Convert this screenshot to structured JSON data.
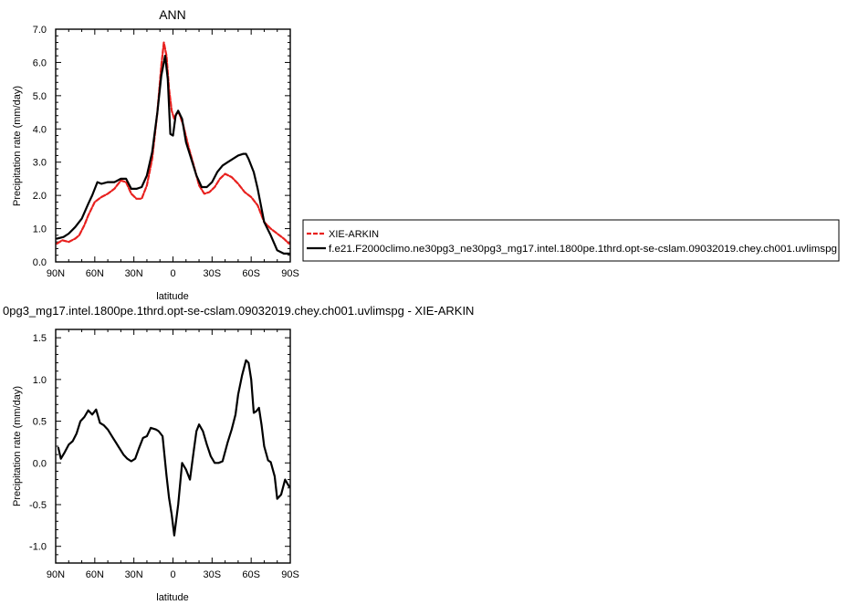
{
  "chart_data": [
    {
      "type": "line",
      "title": "ANN",
      "xlabel": "latitude",
      "ylabel": "Precipitation rate (mm/day)",
      "xlim": [
        -90,
        90
      ],
      "ylim": [
        0,
        7
      ],
      "x_reversed": true,
      "xticks": [
        -90,
        -60,
        -30,
        0,
        30,
        60,
        90
      ],
      "xtick_labels": [
        "90N",
        "60N",
        "30N",
        "0",
        "30S",
        "60S",
        "90S"
      ],
      "yticks": [
        0,
        1,
        2,
        3,
        4,
        5,
        6,
        7
      ],
      "ytick_labels": [
        "0.0",
        "1.0",
        "2.0",
        "3.0",
        "4.0",
        "5.0",
        "6.0",
        "7.0"
      ],
      "legend": "right",
      "series": [
        {
          "name": "XIE-ARKIN",
          "color": "#e8201e",
          "dash": "dashed",
          "x": [
            -89,
            -85,
            -80,
            -75,
            -72,
            -68,
            -65,
            -60,
            -55,
            -50,
            -45,
            -40,
            -36,
            -32,
            -28,
            -24,
            -20,
            -16,
            -12,
            -9,
            -7,
            -5,
            -3,
            -1,
            1,
            3,
            5,
            8,
            12,
            16,
            20,
            24,
            28,
            32,
            36,
            40,
            45,
            50,
            55,
            60,
            65,
            70,
            75,
            80,
            85,
            89
          ],
          "y": [
            0.55,
            0.65,
            0.6,
            0.7,
            0.8,
            1.1,
            1.4,
            1.8,
            1.95,
            2.05,
            2.2,
            2.45,
            2.4,
            2.05,
            1.9,
            1.9,
            2.3,
            3.1,
            4.5,
            5.9,
            6.6,
            6.2,
            5.2,
            4.55,
            4.3,
            4.5,
            4.45,
            4.1,
            3.45,
            2.9,
            2.3,
            2.05,
            2.1,
            2.25,
            2.5,
            2.65,
            2.55,
            2.35,
            2.1,
            1.95,
            1.7,
            1.2,
            1.0,
            0.85,
            0.7,
            0.55
          ]
        },
        {
          "name": "f.e21.F2000climo.ne30pg3_ne30pg3_mg17.intel.1800pe.1thrd.opt-se-cslam.09032019.chey.ch001.uvlimspg",
          "color": "#000000",
          "dash": "solid",
          "x": [
            -89,
            -84,
            -80,
            -75,
            -70,
            -65,
            -62,
            -58,
            -55,
            -50,
            -45,
            -40,
            -36,
            -32,
            -28,
            -24,
            -20,
            -16,
            -12,
            -9,
            -6,
            -4,
            -2,
            0,
            2,
            4,
            7,
            10,
            14,
            18,
            22,
            26,
            30,
            34,
            38,
            42,
            46,
            50,
            54,
            56,
            58,
            62,
            65,
            70,
            75,
            80,
            85,
            89
          ],
          "y": [
            0.7,
            0.75,
            0.85,
            1.05,
            1.3,
            1.75,
            2.0,
            2.4,
            2.35,
            2.4,
            2.4,
            2.5,
            2.5,
            2.2,
            2.2,
            2.25,
            2.6,
            3.3,
            4.5,
            5.6,
            6.2,
            5.5,
            3.85,
            3.8,
            4.4,
            4.55,
            4.3,
            3.6,
            3.1,
            2.6,
            2.25,
            2.25,
            2.4,
            2.7,
            2.9,
            3.0,
            3.1,
            3.2,
            3.25,
            3.25,
            3.1,
            2.7,
            2.2,
            1.2,
            0.8,
            0.35,
            0.25,
            0.25
          ]
        }
      ]
    },
    {
      "type": "line",
      "title": "0pg3_mg17.intel.1800pe.1thrd.opt-se-cslam.09032019.chey.ch001.uvlimspg - XIE-ARKIN",
      "xlabel": "latitude",
      "ylabel": "Precipitation rate (mm/day)",
      "xlim": [
        -90,
        90
      ],
      "ylim": [
        -1.2,
        1.6
      ],
      "x_reversed": true,
      "xticks": [
        -90,
        -60,
        -30,
        0,
        30,
        60,
        90
      ],
      "xtick_labels": [
        "90N",
        "60N",
        "30N",
        "0",
        "30S",
        "60S",
        "90S"
      ],
      "yticks": [
        -1.0,
        -0.5,
        0.0,
        0.5,
        1.0,
        1.5
      ],
      "ytick_labels": [
        "-1.0",
        "-0.5",
        "0.0",
        "0.5",
        "1.0",
        "1.5"
      ],
      "series": [
        {
          "color": "#000000",
          "dash": "solid",
          "x": [
            -88,
            -86,
            -83,
            -80,
            -77,
            -74,
            -71,
            -68,
            -65,
            -62,
            -59,
            -56,
            -53,
            -50,
            -46,
            -42,
            -38,
            -35,
            -32,
            -29,
            -26,
            -23,
            -20,
            -17,
            -13,
            -11,
            -8,
            -5,
            -3,
            -1,
            1,
            4,
            7,
            10,
            13,
            16,
            18,
            20,
            23,
            26,
            29,
            32,
            35,
            38,
            42,
            45,
            48,
            50,
            53,
            56,
            58,
            60,
            62,
            64,
            66,
            68,
            70,
            73,
            75,
            78,
            80,
            83,
            86,
            89
          ],
          "y": [
            0.18,
            0.05,
            0.13,
            0.22,
            0.26,
            0.35,
            0.5,
            0.55,
            0.63,
            0.58,
            0.64,
            0.48,
            0.45,
            0.4,
            0.3,
            0.2,
            0.1,
            0.05,
            0.02,
            0.05,
            0.18,
            0.3,
            0.32,
            0.42,
            0.4,
            0.38,
            0.32,
            -0.15,
            -0.42,
            -0.62,
            -0.87,
            -0.5,
            0.0,
            -0.08,
            -0.2,
            0.15,
            0.38,
            0.46,
            0.38,
            0.22,
            0.08,
            0.0,
            0.0,
            0.02,
            0.25,
            0.4,
            0.58,
            0.82,
            1.05,
            1.23,
            1.2,
            1.0,
            0.6,
            0.62,
            0.66,
            0.45,
            0.2,
            0.03,
            0.01,
            -0.16,
            -0.43,
            -0.38,
            -0.2,
            -0.28
          ]
        }
      ]
    }
  ]
}
